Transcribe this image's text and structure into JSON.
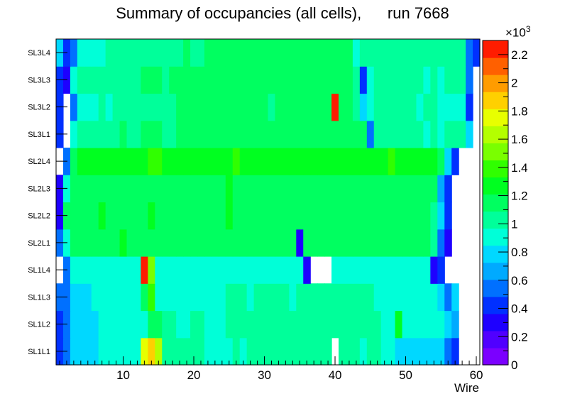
{
  "chart_data": {
    "type": "heatmap",
    "title": "Summary of occupancies (all cells),      run 7668",
    "xlabel": "Wire",
    "ylabel": "",
    "x_ticks": [
      10,
      20,
      30,
      40,
      50,
      60
    ],
    "xlim": [
      0.5,
      60.5
    ],
    "y_categories": [
      "SL1L1",
      "SL1L2",
      "SL1L3",
      "SL1L4",
      "SL2L1",
      "SL2L2",
      "SL2L3",
      "SL2L4",
      "SL3L1",
      "SL3L2",
      "SL3L3",
      "SL3L4"
    ],
    "colorbar": {
      "ticks": [
        0,
        0.2,
        0.4,
        0.6,
        0.8,
        1,
        1.2,
        1.4,
        1.6,
        1.8,
        2,
        2.2
      ],
      "tick_labels": [
        "0",
        "0.2",
        "0.4",
        "0.6",
        "0.8",
        "1",
        "1.2",
        "1.4",
        "1.6",
        "1.8",
        "2",
        "2.2"
      ],
      "multiplier": "×10",
      "multiplier_exp": "3",
      "range": [
        0,
        2.3
      ]
    },
    "rows": {
      "SL1L1": [
        0.45,
        0.55,
        0.75,
        0.75,
        0.75,
        0.8,
        0.85,
        0.85,
        0.9,
        0.85,
        0.9,
        0.9,
        1.7,
        1.9,
        1.65,
        1.0,
        1.0,
        1.0,
        1.0,
        1.0,
        1.0,
        0.95,
        0.9,
        0.9,
        0.95,
        1.0,
        0.95,
        1.0,
        1.0,
        1.0,
        1.0,
        1.0,
        1.0,
        1.0,
        1.0,
        1.0,
        1.0,
        1.0,
        1.0,
        null,
        1.0,
        1.0,
        1.0,
        0.95,
        1.0,
        1.0,
        0.95,
        0.9,
        0.8,
        0.8,
        0.8,
        0.8,
        0.8,
        0.8,
        0.8,
        0.6,
        0.45,
        null,
        null,
        null
      ],
      "SL1L2": [
        0.45,
        0.55,
        0.75,
        0.75,
        0.75,
        0.8,
        0.85,
        0.85,
        0.9,
        0.85,
        0.9,
        0.9,
        0.95,
        1.2,
        1.1,
        1.0,
        1.0,
        0.95,
        0.95,
        1.0,
        1.0,
        0.95,
        0.95,
        0.95,
        1.0,
        1.0,
        1.0,
        1.0,
        1.0,
        1.0,
        1.0,
        1.0,
        1.0,
        1.0,
        1.0,
        1.0,
        1.0,
        1.0,
        1.0,
        1.0,
        1.0,
        1.0,
        1.0,
        1.0,
        1.0,
        1.0,
        0.95,
        0.9,
        1.25,
        0.9,
        0.9,
        0.9,
        0.9,
        0.9,
        0.85,
        0.8,
        0.65,
        null,
        null,
        null
      ],
      "SL1L3": [
        0.5,
        0.6,
        0.8,
        0.8,
        0.8,
        0.85,
        0.85,
        0.85,
        0.9,
        0.9,
        0.9,
        0.9,
        1.2,
        1.45,
        0.95,
        0.95,
        0.95,
        0.9,
        0.9,
        0.95,
        0.95,
        0.95,
        0.95,
        0.95,
        1.0,
        1.0,
        1.0,
        0.95,
        1.0,
        1.0,
        1.0,
        1.05,
        1.0,
        0.95,
        1.0,
        1.0,
        1.0,
        1.0,
        1.0,
        1.0,
        1.0,
        1.0,
        1.0,
        1.0,
        1.0,
        0.95,
        0.95,
        0.9,
        0.9,
        0.9,
        0.9,
        0.9,
        0.9,
        0.9,
        0.8,
        0.6,
        0.8,
        null,
        null,
        null
      ],
      "SL1L4": [
        null,
        0.55,
        0.85,
        0.9,
        0.9,
        0.9,
        0.9,
        0.9,
        0.85,
        0.85,
        0.85,
        0.85,
        2.2,
        1.55,
        0.9,
        0.9,
        0.9,
        0.9,
        0.85,
        0.95,
        0.9,
        0.9,
        0.9,
        0.9,
        0.95,
        0.95,
        0.95,
        0.95,
        0.9,
        0.95,
        0.95,
        0.95,
        0.95,
        0.95,
        0.95,
        0.35,
        null,
        null,
        null,
        0.85,
        0.85,
        0.85,
        0.9,
        0.9,
        0.9,
        0.9,
        0.85,
        0.85,
        0.85,
        0.85,
        0.85,
        0.85,
        0.85,
        0.3,
        0.45,
        null,
        null,
        null,
        null,
        null
      ],
      "SL2L1": [
        0.55,
        0.9,
        1.2,
        1.2,
        1.2,
        1.2,
        1.2,
        1.2,
        1.2,
        1.25,
        1.2,
        1.2,
        1.2,
        1.2,
        1.2,
        1.2,
        1.2,
        1.2,
        1.2,
        1.2,
        1.2,
        1.2,
        1.2,
        1.2,
        1.2,
        1.2,
        1.2,
        1.2,
        1.2,
        1.2,
        1.2,
        1.2,
        1.2,
        1.2,
        0.3,
        1.1,
        1.2,
        1.2,
        1.2,
        1.2,
        1.2,
        1.2,
        1.2,
        1.2,
        1.2,
        1.2,
        1.2,
        1.2,
        1.2,
        1.2,
        1.2,
        1.2,
        1.15,
        1.0,
        0.6,
        0.3,
        null,
        null,
        null,
        null
      ],
      "SL2L2": [
        0.3,
        1.1,
        1.2,
        1.2,
        1.2,
        1.2,
        1.3,
        1.2,
        1.2,
        1.2,
        1.2,
        1.2,
        1.2,
        1.25,
        1.2,
        1.2,
        1.2,
        1.2,
        1.2,
        1.2,
        1.2,
        1.2,
        1.2,
        1.2,
        1.25,
        1.2,
        1.2,
        1.2,
        1.2,
        1.2,
        1.2,
        1.2,
        1.2,
        1.2,
        1.1,
        1.2,
        1.2,
        1.2,
        1.2,
        1.2,
        1.2,
        1.2,
        1.2,
        1.2,
        1.2,
        1.2,
        1.2,
        1.2,
        1.2,
        1.2,
        1.2,
        1.2,
        1.2,
        1.0,
        0.8,
        0.45,
        null,
        null,
        null,
        null
      ],
      "SL2L3": [
        0.3,
        0.85,
        1.15,
        1.2,
        1.2,
        1.2,
        1.2,
        1.2,
        1.2,
        1.2,
        1.2,
        1.2,
        1.2,
        1.2,
        1.2,
        1.2,
        1.2,
        1.2,
        1.2,
        1.2,
        1.2,
        1.2,
        1.2,
        1.2,
        1.25,
        1.2,
        1.2,
        1.2,
        1.2,
        1.2,
        1.2,
        1.2,
        1.2,
        1.2,
        1.1,
        1.2,
        1.2,
        1.2,
        1.2,
        1.2,
        1.2,
        1.2,
        1.2,
        1.2,
        1.2,
        1.2,
        1.2,
        1.2,
        1.2,
        1.2,
        1.2,
        1.2,
        1.2,
        1.15,
        0.65,
        0.4,
        null,
        null,
        null,
        null
      ],
      "SL2L4": [
        null,
        0.55,
        1.2,
        1.3,
        1.3,
        1.3,
        1.3,
        1.3,
        1.3,
        1.3,
        1.3,
        1.25,
        1.3,
        1.35,
        1.35,
        1.3,
        1.3,
        1.3,
        1.3,
        1.3,
        1.3,
        1.3,
        1.3,
        1.3,
        1.3,
        1.35,
        1.3,
        1.3,
        1.3,
        1.3,
        1.3,
        1.3,
        1.3,
        1.3,
        1.3,
        1.3,
        1.3,
        1.3,
        1.3,
        1.3,
        1.3,
        1.3,
        1.3,
        1.3,
        1.3,
        1.3,
        1.3,
        1.35,
        1.3,
        1.3,
        1.3,
        1.3,
        1.3,
        1.3,
        1.2,
        0.75,
        0.4,
        null,
        null,
        null
      ],
      "SL3L1": [
        0.45,
        null,
        0.9,
        1.0,
        1.0,
        1.0,
        1.0,
        1.05,
        1.05,
        1.1,
        1.05,
        1.05,
        1.1,
        1.1,
        1.1,
        1.05,
        1.05,
        1.1,
        1.1,
        1.15,
        1.1,
        1.1,
        1.1,
        1.1,
        1.1,
        1.1,
        1.1,
        1.1,
        1.1,
        1.1,
        1.1,
        1.1,
        1.1,
        1.1,
        1.1,
        1.1,
        1.1,
        1.1,
        1.1,
        1.1,
        1.1,
        1.1,
        1.1,
        1.1,
        0.6,
        1.0,
        1.0,
        1.0,
        1.0,
        1.0,
        1.0,
        1.0,
        0.95,
        1.0,
        0.9,
        1.0,
        1.0,
        1.0,
        0.8,
        null
      ],
      "SL3L2": [
        0.45,
        null,
        0.6,
        0.85,
        0.9,
        0.9,
        1.0,
        0.95,
        1.0,
        1.0,
        1.05,
        1.05,
        1.05,
        1.05,
        1.05,
        1.05,
        1.05,
        1.1,
        1.1,
        1.15,
        1.1,
        1.1,
        1.1,
        1.15,
        1.15,
        1.15,
        1.1,
        1.1,
        1.1,
        1.1,
        1.05,
        1.1,
        1.15,
        1.15,
        1.1,
        1.15,
        1.15,
        1.1,
        1.1,
        2.25,
        1.1,
        1.1,
        1.05,
        0.8,
        0.85,
        1.0,
        1.0,
        1.0,
        1.0,
        1.0,
        1.0,
        0.95,
        1.0,
        1.0,
        0.95,
        0.95,
        0.95,
        0.95,
        0.45,
        null
      ],
      "SL3L3": [
        0.45,
        0.35,
        0.9,
        1.0,
        1.0,
        1.0,
        1.05,
        1.05,
        1.05,
        1.05,
        1.05,
        1.05,
        1.1,
        1.1,
        1.1,
        1.05,
        1.1,
        1.1,
        1.1,
        1.15,
        1.1,
        1.1,
        1.1,
        1.1,
        1.1,
        1.1,
        1.1,
        1.15,
        1.15,
        1.1,
        1.1,
        1.1,
        1.1,
        1.1,
        1.1,
        1.15,
        1.1,
        1.1,
        1.1,
        1.1,
        1.1,
        1.1,
        1.05,
        0.45,
        0.95,
        1.0,
        1.0,
        1.0,
        1.0,
        1.0,
        1.0,
        1.0,
        0.95,
        1.0,
        0.95,
        1.0,
        1.0,
        1.0,
        0.5,
        null
      ],
      "SL3L4": [
        0.8,
        0.45,
        0.55,
        0.95,
        0.95,
        0.95,
        0.95,
        1.0,
        1.0,
        1.0,
        1.0,
        1.05,
        1.05,
        1.05,
        1.05,
        1.05,
        1.05,
        1.05,
        1.1,
        1.05,
        1.05,
        1.1,
        1.1,
        1.1,
        1.1,
        1.1,
        1.1,
        1.1,
        1.1,
        1.15,
        1.1,
        1.1,
        1.1,
        1.1,
        1.15,
        1.1,
        1.1,
        1.1,
        1.1,
        1.1,
        1.1,
        1.1,
        0.85,
        1.0,
        1.0,
        1.0,
        1.0,
        1.0,
        1.0,
        1.0,
        1.0,
        1.0,
        1.0,
        1.0,
        1.0,
        1.0,
        1.0,
        1.0,
        0.55,
        0.45
      ]
    }
  }
}
